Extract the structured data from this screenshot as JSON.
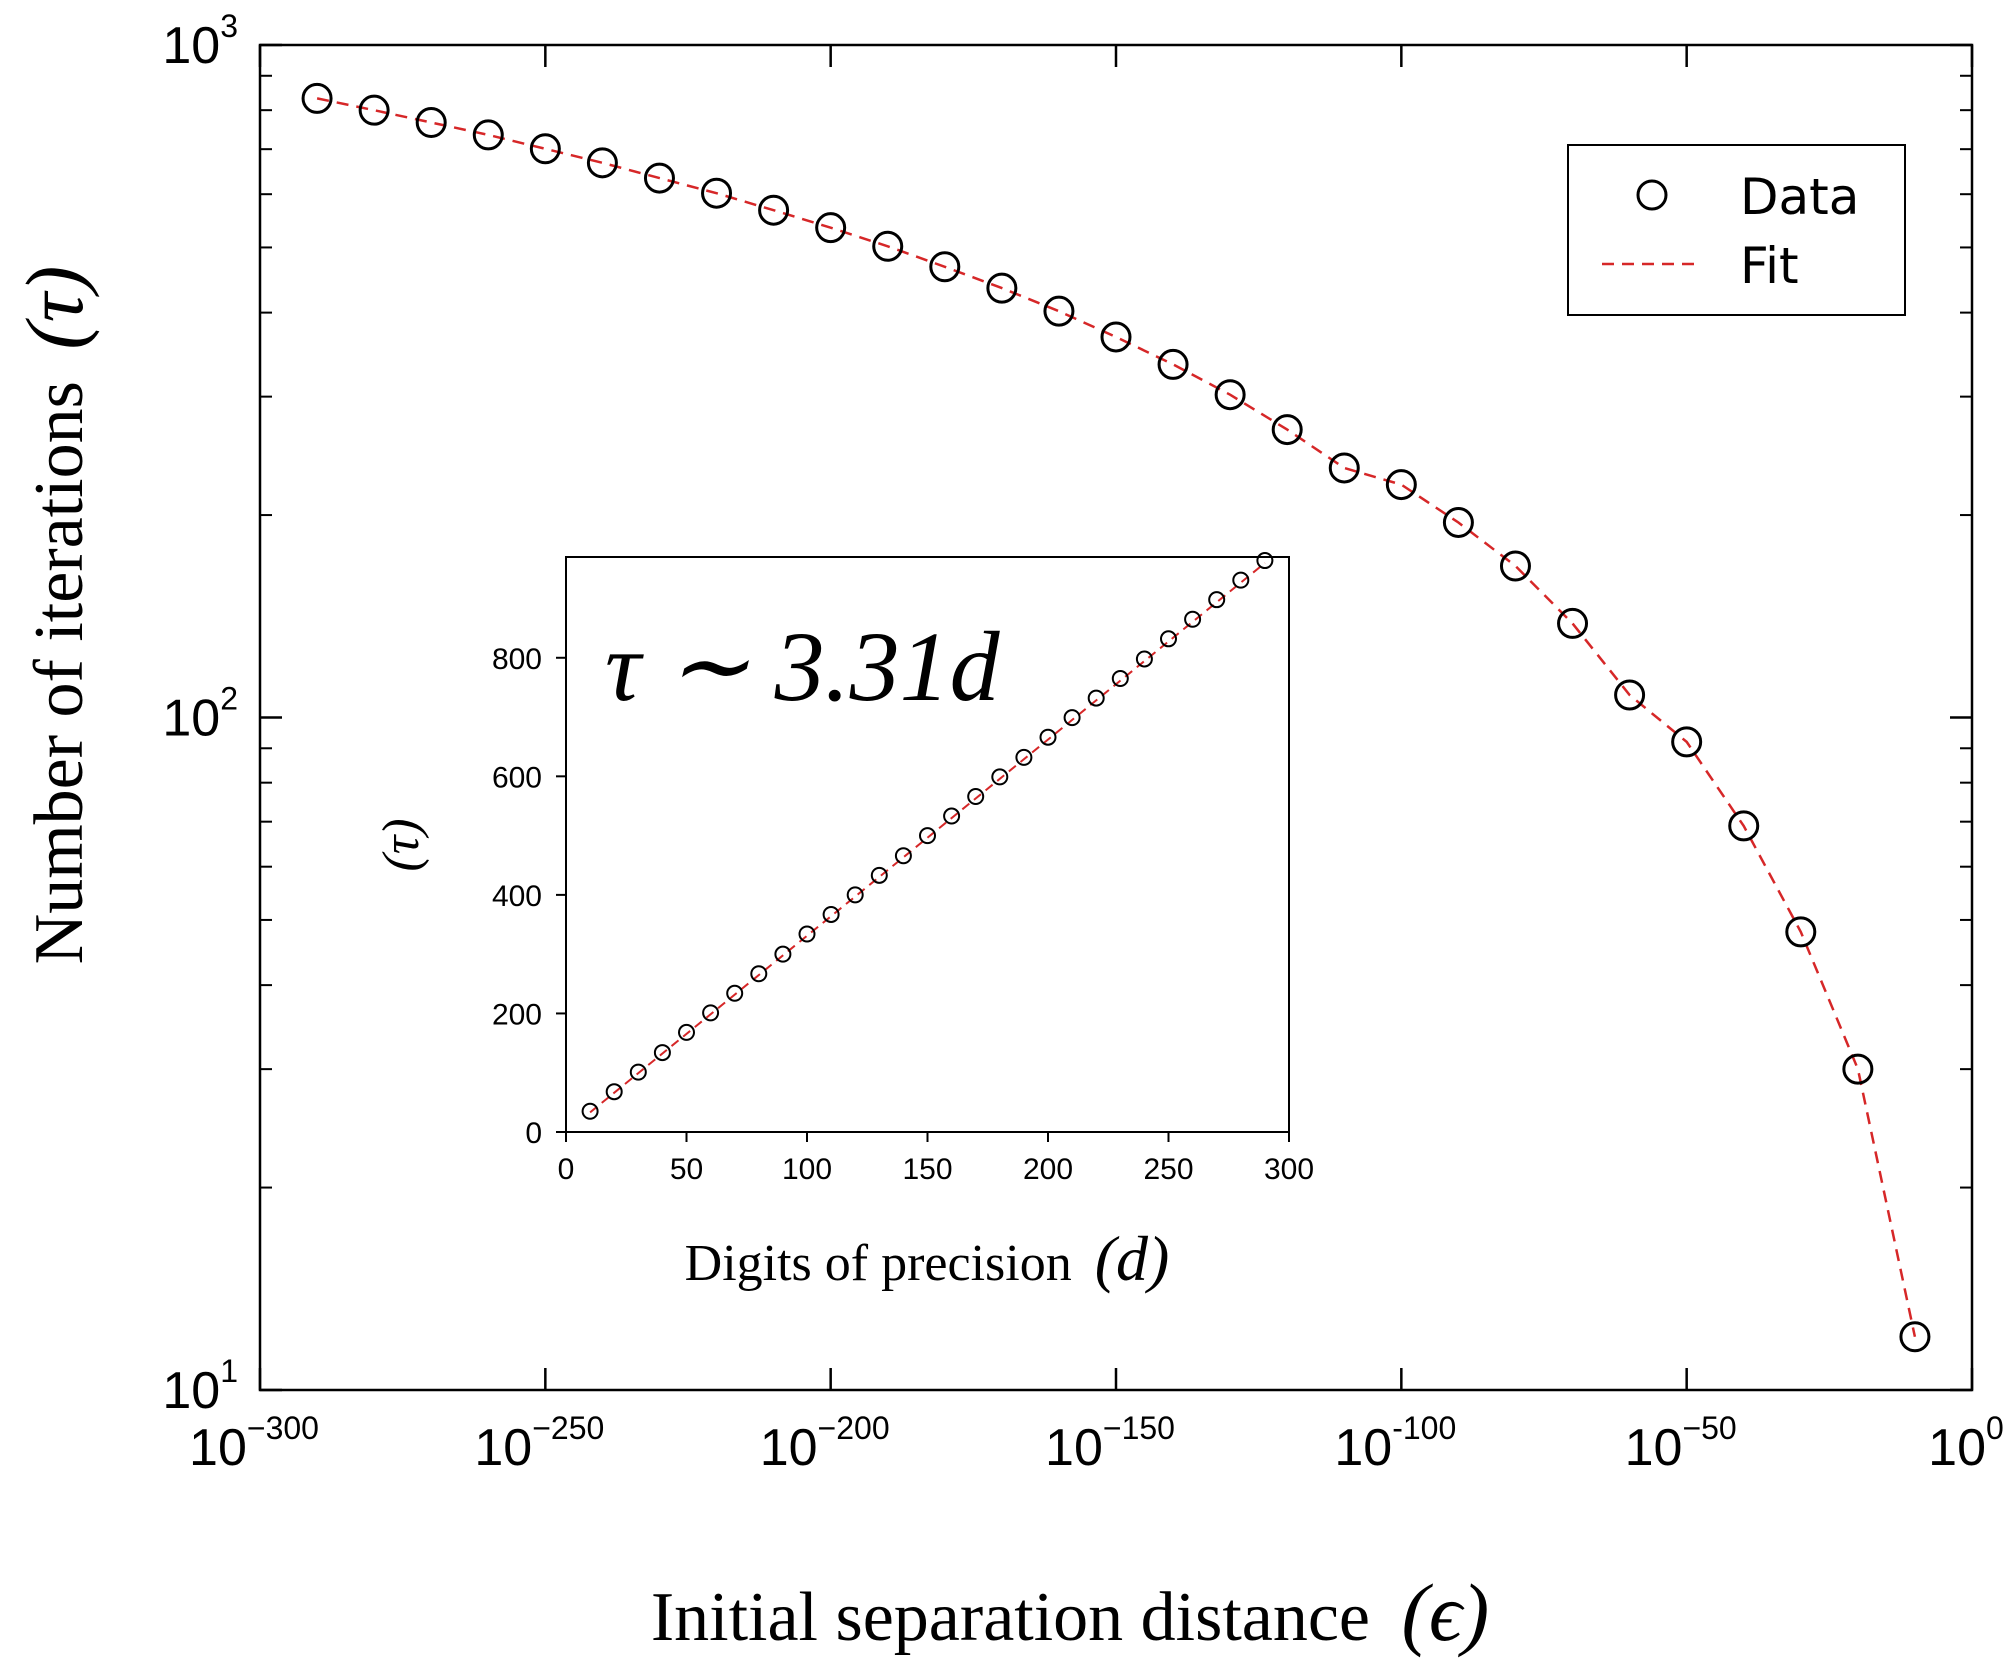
{
  "chart_data": [
    {
      "type": "scatter",
      "role": "main",
      "xscale": "log",
      "yscale": "log",
      "xlabel_text": "Initial separation distance",
      "xlabel_symbol": "(ϵ)",
      "ylabel_text": "Number of iterations",
      "ylabel_symbol": "(τ)",
      "xlim_exponent": [
        -300,
        0
      ],
      "ylim_exponent": [
        1,
        3
      ],
      "x_ticks": [
        {
          "base": "10",
          "exp": "−300",
          "value": -300
        },
        {
          "base": "10",
          "exp": "−250",
          "value": -250
        },
        {
          "base": "10",
          "exp": "−200",
          "value": -200
        },
        {
          "base": "10",
          "exp": "−150",
          "value": -150
        },
        {
          "base": "10",
          "exp": "-100",
          "value": -100
        },
        {
          "base": "10",
          "exp": "−50",
          "value": -50
        },
        {
          "base": "10",
          "exp": "0",
          "value": 0
        }
      ],
      "y_ticks": [
        {
          "base": "10",
          "exp": "1",
          "value": 1
        },
        {
          "base": "10",
          "exp": "2",
          "value": 2
        },
        {
          "base": "10",
          "exp": "3",
          "value": 3
        }
      ],
      "legend": {
        "position": "top-right",
        "entries": [
          "Data",
          "Fit"
        ]
      },
      "series": [
        {
          "name": "Data",
          "marker": "open-circle",
          "x_exponent": [
            -290,
            -280,
            -270,
            -260,
            -250,
            -240,
            -230,
            -220,
            -210,
            -200,
            -190,
            -180,
            -170,
            -160,
            -150,
            -140,
            -130,
            -120,
            -110,
            -100,
            -90,
            -80,
            -70,
            -60,
            -50,
            -40,
            -30,
            -20,
            -10
          ],
          "y": [
            833,
            800,
            767,
            735,
            701,
            668,
            634,
            602,
            568,
            535,
            502,
            468,
            435,
            402,
            368,
            335,
            302,
            268,
            235,
            222,
            195,
            168,
            138,
            108,
            92,
            69,
            48,
            30,
            12
          ]
        },
        {
          "name": "Fit",
          "style": "dashed",
          "color": "#d62728",
          "x_exponent": [
            -290,
            -280,
            -270,
            -260,
            -250,
            -240,
            -230,
            -220,
            -210,
            -200,
            -190,
            -180,
            -170,
            -160,
            -150,
            -140,
            -130,
            -120,
            -110,
            -100,
            -90,
            -80,
            -70,
            -60,
            -50,
            -40,
            -30,
            -20,
            -10
          ],
          "y": [
            833,
            800,
            767,
            735,
            701,
            668,
            634,
            602,
            568,
            535,
            502,
            468,
            435,
            402,
            368,
            335,
            302,
            268,
            235,
            222,
            195,
            168,
            138,
            108,
            92,
            69,
            48,
            30,
            12
          ]
        }
      ]
    },
    {
      "type": "scatter",
      "role": "inset",
      "xlabel_text": "Digits of precision",
      "xlabel_symbol": "(d)",
      "ylabel_symbol": "(τ)",
      "annotation": "τ ∼ 3.31d",
      "xlim": [
        0,
        300
      ],
      "ylim": [
        0,
        970
      ],
      "x_ticks": [
        "0",
        "50",
        "100",
        "150",
        "200",
        "250",
        "300"
      ],
      "x_tick_values": [
        0,
        50,
        100,
        150,
        200,
        250,
        300
      ],
      "y_ticks": [
        "0",
        "200",
        "400",
        "600",
        "800"
      ],
      "y_tick_values": [
        0,
        200,
        400,
        600,
        800
      ],
      "series": [
        {
          "name": "Data",
          "marker": "open-circle",
          "x": [
            10,
            20,
            30,
            40,
            50,
            60,
            70,
            80,
            90,
            100,
            110,
            120,
            130,
            140,
            150,
            160,
            170,
            180,
            190,
            200,
            210,
            220,
            230,
            240,
            250,
            260,
            270,
            280,
            290
          ],
          "y": [
            35,
            68,
            101,
            134,
            168,
            201,
            234,
            267,
            300,
            334,
            367,
            400,
            433,
            466,
            500,
            533,
            566,
            599,
            632,
            666,
            699,
            732,
            765,
            798,
            832,
            865,
            898,
            931,
            964
          ]
        },
        {
          "name": "Fit",
          "style": "dashed",
          "color": "#d62728",
          "x": [
            10,
            290
          ],
          "y": [
            33.1,
            959.9
          ]
        }
      ]
    }
  ]
}
